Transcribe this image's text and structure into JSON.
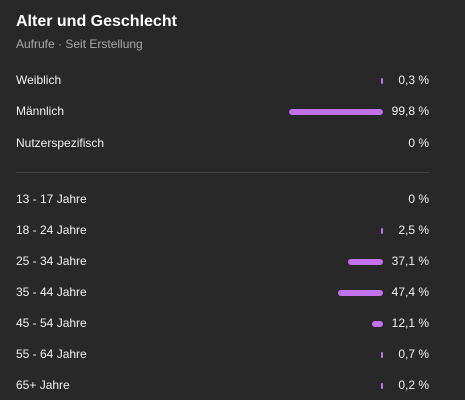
{
  "header": {
    "title": "Alter und Geschlecht",
    "subtitle": "Aufrufe · Seit Erstellung"
  },
  "colors": {
    "background": "#282828",
    "bar": "#c471ed",
    "divider": "#3f3f3f"
  },
  "gender": [
    {
      "label": "Weiblich",
      "value": "0,3 %",
      "percent": 0.3
    },
    {
      "label": "Männlich",
      "value": "99,8 %",
      "percent": 99.8
    },
    {
      "label": "Nutzerspezifisch",
      "value": "0 %",
      "percent": 0
    }
  ],
  "age": [
    {
      "label": "13 - 17 Jahre",
      "value": "0 %",
      "percent": 0
    },
    {
      "label": "18 - 24 Jahre",
      "value": "2,5 %",
      "percent": 2.5
    },
    {
      "label": "25 - 34 Jahre",
      "value": "37,1 %",
      "percent": 37.1
    },
    {
      "label": "35 - 44 Jahre",
      "value": "47,4 %",
      "percent": 47.4
    },
    {
      "label": "45 - 54 Jahre",
      "value": "12,1 %",
      "percent": 12.1
    },
    {
      "label": "55 - 64 Jahre",
      "value": "0,7 %",
      "percent": 0.7
    },
    {
      "label": "65+ Jahre",
      "value": "0,2 %",
      "percent": 0.2
    }
  ]
}
